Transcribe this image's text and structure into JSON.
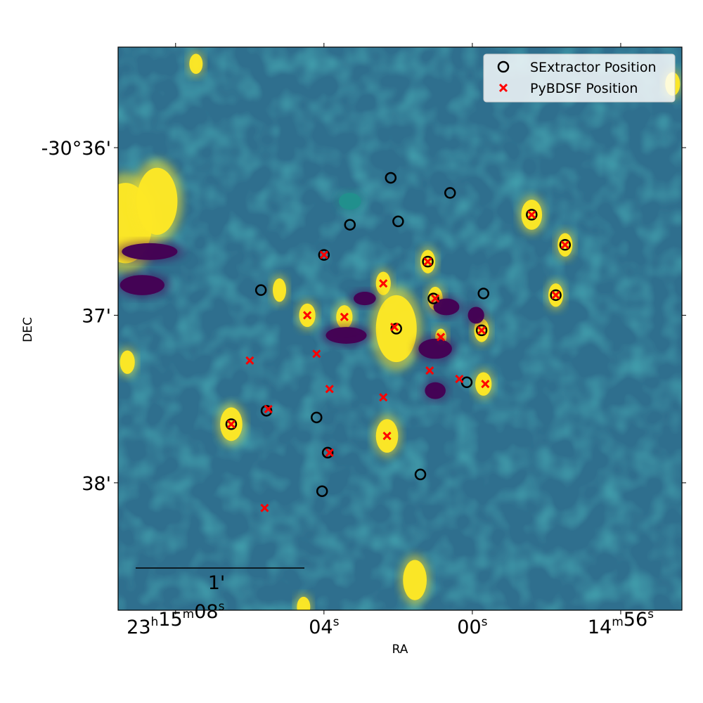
{
  "chart_data": {
    "type": "scatter",
    "title": "",
    "xlabel": "RA",
    "ylabel": "DEC",
    "x_units": "RA seconds past 23h14m (J2000)",
    "y_units": "DEC arcmin below -30° (negative)",
    "xlim": [
      69.55,
      54.35
    ],
    "ylim": [
      -38.76,
      -35.4
    ],
    "grid": false,
    "legend_position": "top-right",
    "background": "radio continuum image, viridis colormap, heavily saturated",
    "colormap": {
      "low": "#440154",
      "mid": "#21918c",
      "high": "#fde725"
    },
    "x_ticks": [
      {
        "value": 68,
        "label": {
          "h": "23",
          "hsup": "h",
          "m": "15",
          "msup": "m",
          "s": "08",
          "ssup": "s"
        }
      },
      {
        "value": 64,
        "label": {
          "s": "04",
          "ssup": "s"
        }
      },
      {
        "value": 60,
        "label": {
          "s": "00",
          "ssup": "s"
        }
      },
      {
        "value": 56,
        "label": {
          "m": "14",
          "msup": "m",
          "s": "56",
          "ssup": "s"
        }
      }
    ],
    "y_ticks": [
      {
        "value": -36,
        "label": "-30°36'"
      },
      {
        "value": -37,
        "label": "37'"
      },
      {
        "value": -38,
        "label": "38'"
      }
    ],
    "scalebar": {
      "label": "1'",
      "length_arcmin": 1
    },
    "series": [
      {
        "name": "SExtractor Position",
        "marker": "circle-open",
        "color": "#000000",
        "points": [
          [
            62.2,
            -36.18
          ],
          [
            60.6,
            -36.27
          ],
          [
            58.4,
            -36.4
          ],
          [
            62.0,
            -36.44
          ],
          [
            63.3,
            -36.46
          ],
          [
            57.5,
            -36.58
          ],
          [
            64.0,
            -36.64
          ],
          [
            61.2,
            -36.68
          ],
          [
            65.7,
            -36.85
          ],
          [
            61.05,
            -36.9
          ],
          [
            59.7,
            -36.87
          ],
          [
            57.75,
            -36.88
          ],
          [
            62.05,
            -37.08
          ],
          [
            59.75,
            -37.09
          ],
          [
            60.15,
            -37.4
          ],
          [
            66.5,
            -37.65
          ],
          [
            65.55,
            -37.57
          ],
          [
            64.2,
            -37.61
          ],
          [
            63.9,
            -37.82
          ],
          [
            61.4,
            -37.95
          ],
          [
            64.05,
            -38.05
          ]
        ]
      },
      {
        "name": "PyBDSF Position",
        "marker": "x",
        "color": "#ff0000",
        "points": [
          [
            58.4,
            -36.4
          ],
          [
            57.5,
            -36.58
          ],
          [
            64.0,
            -36.64
          ],
          [
            61.2,
            -36.68
          ],
          [
            62.4,
            -36.81
          ],
          [
            61.0,
            -36.9
          ],
          [
            57.75,
            -36.88
          ],
          [
            64.45,
            -37.0
          ],
          [
            63.45,
            -37.01
          ],
          [
            62.1,
            -37.07
          ],
          [
            60.85,
            -37.13
          ],
          [
            59.75,
            -37.09
          ],
          [
            64.2,
            -37.23
          ],
          [
            66.0,
            -37.27
          ],
          [
            61.15,
            -37.33
          ],
          [
            60.35,
            -37.38
          ],
          [
            59.65,
            -37.41
          ],
          [
            63.85,
            -37.44
          ],
          [
            62.4,
            -37.49
          ],
          [
            65.5,
            -37.56
          ],
          [
            66.5,
            -37.65
          ],
          [
            62.3,
            -37.72
          ],
          [
            63.85,
            -37.82
          ],
          [
            65.6,
            -38.15
          ]
        ]
      }
    ],
    "image_blobs": [
      {
        "ra": 69.35,
        "dec": -36.45,
        "rx": 0.72,
        "ry": 0.24,
        "level": "high"
      },
      {
        "ra": 68.5,
        "dec": -36.32,
        "rx": 0.55,
        "ry": 0.2,
        "level": "high"
      },
      {
        "ra": 62.05,
        "dec": -37.08,
        "rx": 0.55,
        "ry": 0.2,
        "level": "high"
      },
      {
        "ra": 62.3,
        "dec": -37.72,
        "rx": 0.3,
        "ry": 0.1,
        "level": "high"
      },
      {
        "ra": 61.55,
        "dec": -38.58,
        "rx": 0.32,
        "ry": 0.12,
        "level": "high"
      },
      {
        "ra": 58.4,
        "dec": -36.4,
        "rx": 0.28,
        "ry": 0.09,
        "level": "high"
      },
      {
        "ra": 66.5,
        "dec": -37.65,
        "rx": 0.3,
        "ry": 0.1,
        "level": "high"
      },
      {
        "ra": 57.5,
        "dec": -36.58,
        "rx": 0.2,
        "ry": 0.07,
        "level": "high"
      },
      {
        "ra": 57.75,
        "dec": -36.88,
        "rx": 0.2,
        "ry": 0.07,
        "level": "high"
      },
      {
        "ra": 59.75,
        "dec": -37.09,
        "rx": 0.2,
        "ry": 0.07,
        "level": "high"
      },
      {
        "ra": 59.7,
        "dec": -37.41,
        "rx": 0.22,
        "ry": 0.07,
        "level": "high"
      },
      {
        "ra": 62.4,
        "dec": -36.81,
        "rx": 0.2,
        "ry": 0.07,
        "level": "high"
      },
      {
        "ra": 64.45,
        "dec": -37.0,
        "rx": 0.22,
        "ry": 0.07,
        "level": "high"
      },
      {
        "ra": 63.45,
        "dec": -37.01,
        "rx": 0.22,
        "ry": 0.07,
        "level": "high"
      },
      {
        "ra": 61.0,
        "dec": -36.9,
        "rx": 0.2,
        "ry": 0.07,
        "level": "high"
      },
      {
        "ra": 60.85,
        "dec": -37.13,
        "rx": 0.15,
        "ry": 0.05,
        "level": "high"
      },
      {
        "ra": 61.2,
        "dec": -36.68,
        "rx": 0.2,
        "ry": 0.07,
        "level": "high"
      },
      {
        "ra": 67.45,
        "dec": -35.5,
        "rx": 0.18,
        "ry": 0.06,
        "level": "high"
      },
      {
        "ra": 64.55,
        "dec": -38.74,
        "rx": 0.18,
        "ry": 0.06,
        "level": "high"
      },
      {
        "ra": 54.6,
        "dec": -35.62,
        "rx": 0.2,
        "ry": 0.07,
        "level": "high"
      },
      {
        "ra": 69.3,
        "dec": -37.28,
        "rx": 0.2,
        "ry": 0.07,
        "level": "high"
      },
      {
        "ra": 65.2,
        "dec": -36.85,
        "rx": 0.18,
        "ry": 0.07,
        "level": "high"
      },
      {
        "ra": 68.7,
        "dec": -36.62,
        "rx": 0.75,
        "ry": 0.05,
        "level": "low"
      },
      {
        "ra": 68.9,
        "dec": -36.82,
        "rx": 0.6,
        "ry": 0.06,
        "level": "low"
      },
      {
        "ra": 60.7,
        "dec": -36.95,
        "rx": 0.35,
        "ry": 0.05,
        "level": "low"
      },
      {
        "ra": 63.4,
        "dec": -37.12,
        "rx": 0.55,
        "ry": 0.05,
        "level": "low"
      },
      {
        "ra": 61.0,
        "dec": -37.2,
        "rx": 0.45,
        "ry": 0.06,
        "level": "low"
      },
      {
        "ra": 59.9,
        "dec": -37.0,
        "rx": 0.22,
        "ry": 0.05,
        "level": "low"
      },
      {
        "ra": 62.9,
        "dec": -36.9,
        "rx": 0.3,
        "ry": 0.04,
        "level": "low"
      },
      {
        "ra": 63.3,
        "dec": -36.32,
        "rx": 0.3,
        "ry": 0.05,
        "level": "mid"
      },
      {
        "ra": 61.0,
        "dec": -37.45,
        "rx": 0.28,
        "ry": 0.05,
        "level": "low"
      }
    ]
  }
}
